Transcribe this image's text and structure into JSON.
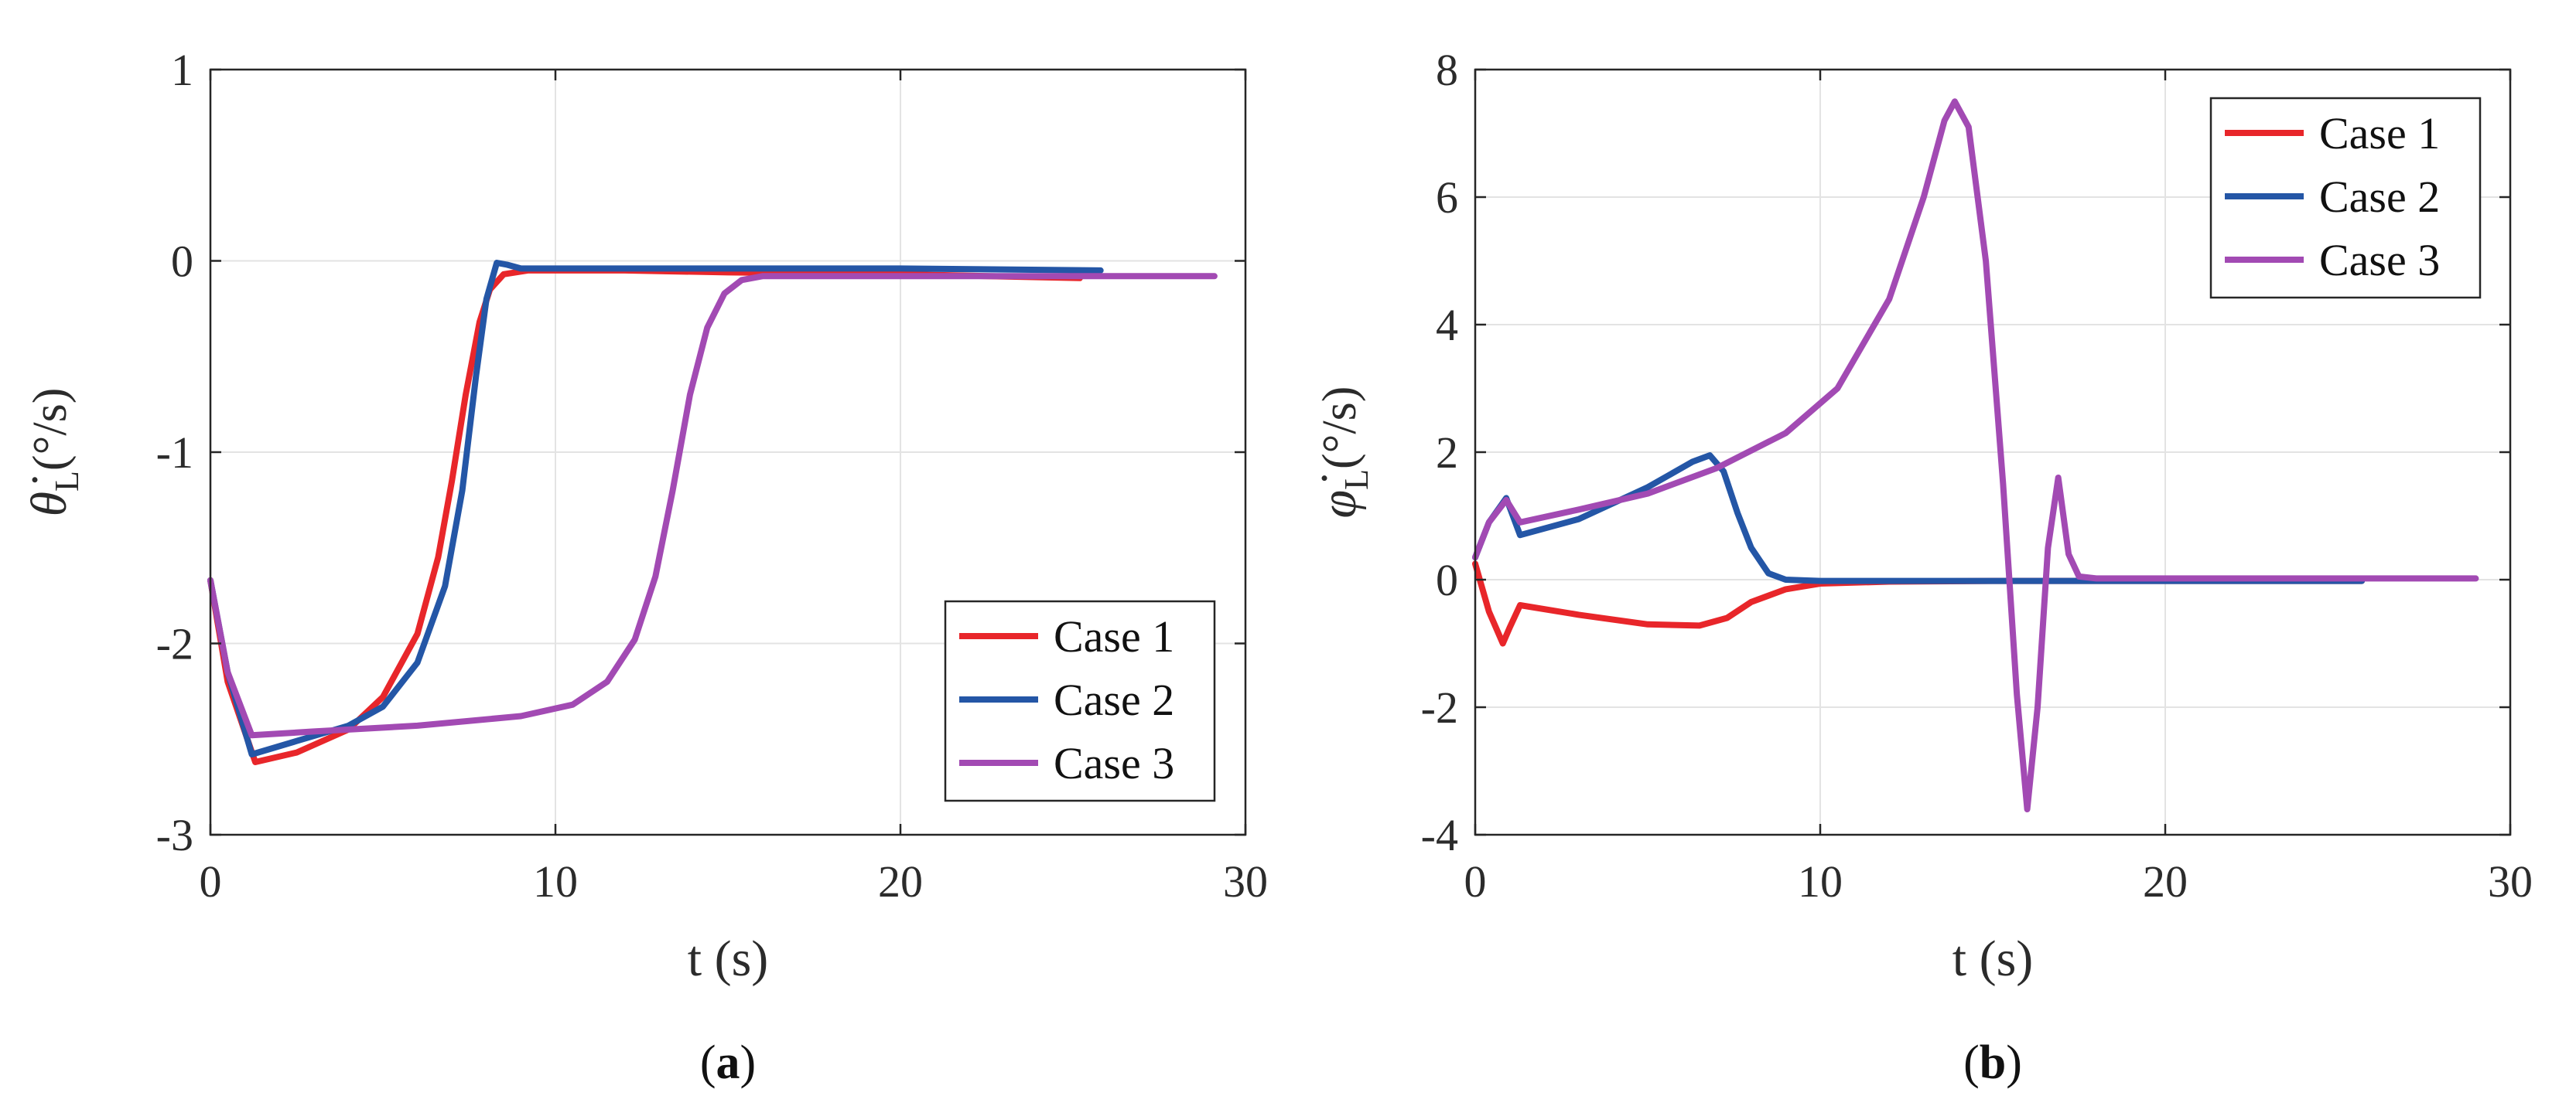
{
  "chart_data": [
    {
      "type": "line",
      "panel": "a",
      "caption": "(a)",
      "caption_letter": "a",
      "xlabel": "t (s)",
      "ylabel": "θ̇L(°/s)",
      "ylabel_main": "θ̇",
      "ylabel_sub": "L",
      "ylabel_unit": "(°/s)",
      "xlim": [
        0,
        30
      ],
      "ylim": [
        -3,
        1
      ],
      "xticks": [
        0,
        10,
        20,
        30
      ],
      "yticks": [
        -3,
        -2,
        -1,
        0,
        1
      ],
      "xtick_labels": [
        "0",
        "10",
        "20",
        "30"
      ],
      "ytick_labels": [
        "-3",
        "-2",
        "-1",
        "0",
        "1"
      ],
      "grid": true,
      "legend_position": "bottom-right",
      "series": [
        {
          "name": "Case 1",
          "color": "#e8262a",
          "x": [
            0,
            0.5,
            1.3,
            2.5,
            4,
            5,
            6,
            6.6,
            7,
            7.4,
            7.8,
            8.1,
            8.5,
            9.2,
            10,
            12,
            15,
            20,
            25.2
          ],
          "y": [
            -1.67,
            -2.2,
            -2.62,
            -2.57,
            -2.45,
            -2.28,
            -1.95,
            -1.55,
            -1.15,
            -0.7,
            -0.32,
            -0.15,
            -0.07,
            -0.05,
            -0.05,
            -0.05,
            -0.06,
            -0.07,
            -0.09
          ]
        },
        {
          "name": "Case 2",
          "color": "#2456a6",
          "x": [
            0,
            0.5,
            1.2,
            2.5,
            4,
            5,
            6,
            6.8,
            7.3,
            7.7,
            8.0,
            8.3,
            8.6,
            9.0,
            10,
            15,
            20,
            25.8
          ],
          "y": [
            -1.67,
            -2.15,
            -2.58,
            -2.51,
            -2.43,
            -2.33,
            -2.1,
            -1.7,
            -1.2,
            -0.6,
            -0.2,
            -0.01,
            -0.02,
            -0.04,
            -0.04,
            -0.04,
            -0.04,
            -0.05
          ]
        },
        {
          "name": "Case 3",
          "color": "#a24ab3",
          "x": [
            0,
            0.5,
            1.2,
            3,
            6,
            9,
            10.5,
            11.5,
            12.3,
            12.9,
            13.4,
            13.9,
            14.4,
            14.9,
            15.4,
            16,
            17,
            20,
            25,
            29.1
          ],
          "y": [
            -1.67,
            -2.15,
            -2.48,
            -2.46,
            -2.43,
            -2.38,
            -2.32,
            -2.2,
            -1.98,
            -1.65,
            -1.2,
            -0.7,
            -0.35,
            -0.17,
            -0.1,
            -0.08,
            -0.08,
            -0.08,
            -0.08,
            -0.08
          ]
        }
      ]
    },
    {
      "type": "line",
      "panel": "b",
      "caption": "(b)",
      "caption_letter": "b",
      "xlabel": "t (s)",
      "ylabel": "φ̇L(°/s)",
      "ylabel_main": "φ̇",
      "ylabel_sub": "L",
      "ylabel_unit": "(°/s)",
      "xlim": [
        0,
        30
      ],
      "ylim": [
        -4,
        8
      ],
      "xticks": [
        0,
        10,
        20,
        30
      ],
      "yticks": [
        -4,
        -2,
        0,
        2,
        4,
        6,
        8
      ],
      "xtick_labels": [
        "0",
        "10",
        "20",
        "30"
      ],
      "ytick_labels": [
        "-4",
        "-2",
        "0",
        "2",
        "4",
        "6",
        "8"
      ],
      "grid": true,
      "legend_position": "top-right",
      "series": [
        {
          "name": "Case 1",
          "color": "#e8262a",
          "x": [
            0,
            0.4,
            0.8,
            1.0,
            1.3,
            3,
            5,
            6.5,
            7.3,
            8,
            9,
            10,
            12,
            15,
            20,
            25.7
          ],
          "y": [
            0.25,
            -0.5,
            -1.0,
            -0.75,
            -0.4,
            -0.55,
            -0.7,
            -0.72,
            -0.6,
            -0.35,
            -0.15,
            -0.06,
            -0.03,
            -0.02,
            -0.02,
            -0.02
          ]
        },
        {
          "name": "Case 2",
          "color": "#2456a6",
          "x": [
            0,
            0.4,
            0.9,
            1.3,
            3,
            5,
            6.3,
            6.8,
            7.2,
            7.6,
            8,
            8.5,
            9,
            10,
            15,
            20,
            25.7
          ],
          "y": [
            0.35,
            0.9,
            1.28,
            0.7,
            0.95,
            1.45,
            1.85,
            1.95,
            1.7,
            1.05,
            0.5,
            0.1,
            0.0,
            -0.02,
            -0.02,
            -0.02,
            -0.02
          ]
        },
        {
          "name": "Case 3",
          "color": "#a24ab3",
          "x": [
            0,
            0.4,
            0.9,
            1.3,
            3,
            5,
            7,
            9,
            10.5,
            12,
            13,
            13.6,
            13.9,
            14.3,
            14.8,
            15.3,
            15.7,
            16.0,
            16.3,
            16.6,
            16.9,
            17.2,
            17.5,
            18,
            20,
            25,
            29
          ],
          "y": [
            0.35,
            0.9,
            1.25,
            0.9,
            1.1,
            1.35,
            1.75,
            2.3,
            3.0,
            4.4,
            6.0,
            7.2,
            7.5,
            7.1,
            5.0,
            1.5,
            -1.8,
            -3.6,
            -2.0,
            0.5,
            1.6,
            0.4,
            0.05,
            0.02,
            0.02,
            0.02,
            0.02
          ]
        }
      ]
    }
  ]
}
